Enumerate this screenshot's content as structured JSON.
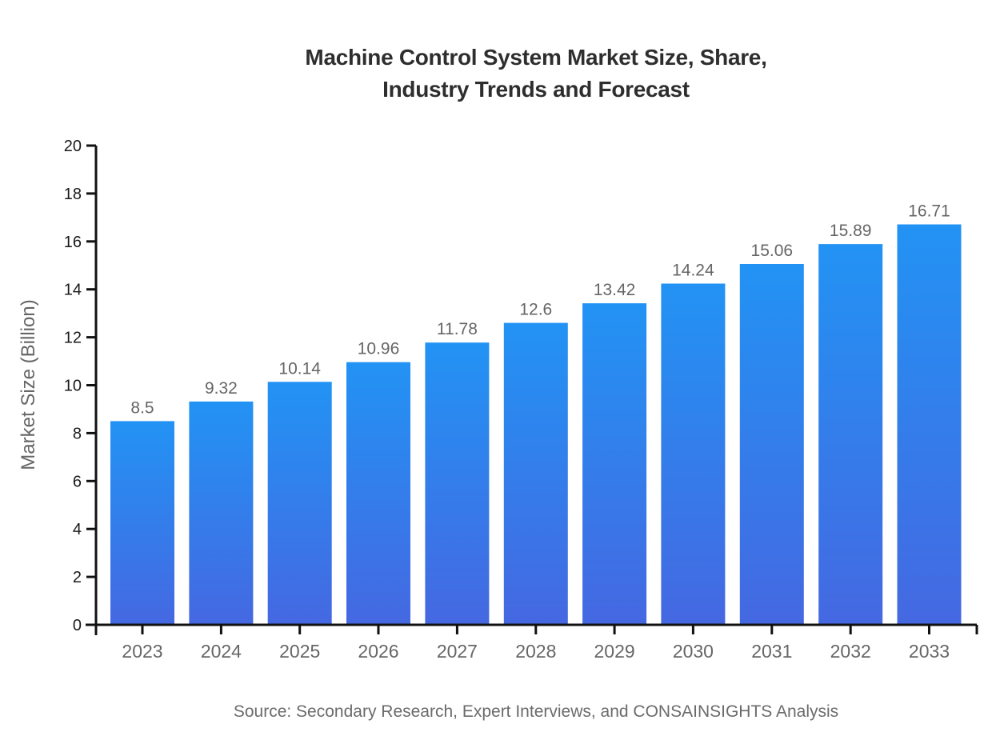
{
  "page": {
    "background": "#ffffff"
  },
  "chart": {
    "title_line1": "Machine Control System Market Size, Share,",
    "title_line2": "Industry Trends and Forecast"
  },
  "chart_data": {
    "type": "bar",
    "title": "Machine Control System Market Size, Share, Industry Trends and Forecast",
    "categories": [
      "2023",
      "2024",
      "2025",
      "2026",
      "2027",
      "2028",
      "2029",
      "2030",
      "2031",
      "2032",
      "2033"
    ],
    "values": [
      8.5,
      9.32,
      10.14,
      10.96,
      11.78,
      12.6,
      13.42,
      14.24,
      15.06,
      15.89,
      16.71
    ],
    "value_labels": [
      "8.5",
      "9.32",
      "10.14",
      "10.96",
      "11.78",
      "12.6",
      "13.42",
      "14.24",
      "15.06",
      "15.89",
      "16.71"
    ],
    "xlabel": "",
    "ylabel": "Market Size (Billion)",
    "ylim": [
      0,
      20
    ],
    "ytick_step": 2,
    "grid": false,
    "legend": false,
    "source": "Source: Secondary Research, Expert Interviews, and CONSAINSIGHTS Analysis",
    "colors": {
      "bar_gradient_top": "#2293F4",
      "bar_gradient_bottom": "#4568E1",
      "axis": "#111111",
      "ytick_label": "#1a1a1a",
      "xtick_label": "#666666",
      "value_label": "#666666",
      "title": "#2e2e2e",
      "muted_text": "#6b6b6b"
    }
  }
}
